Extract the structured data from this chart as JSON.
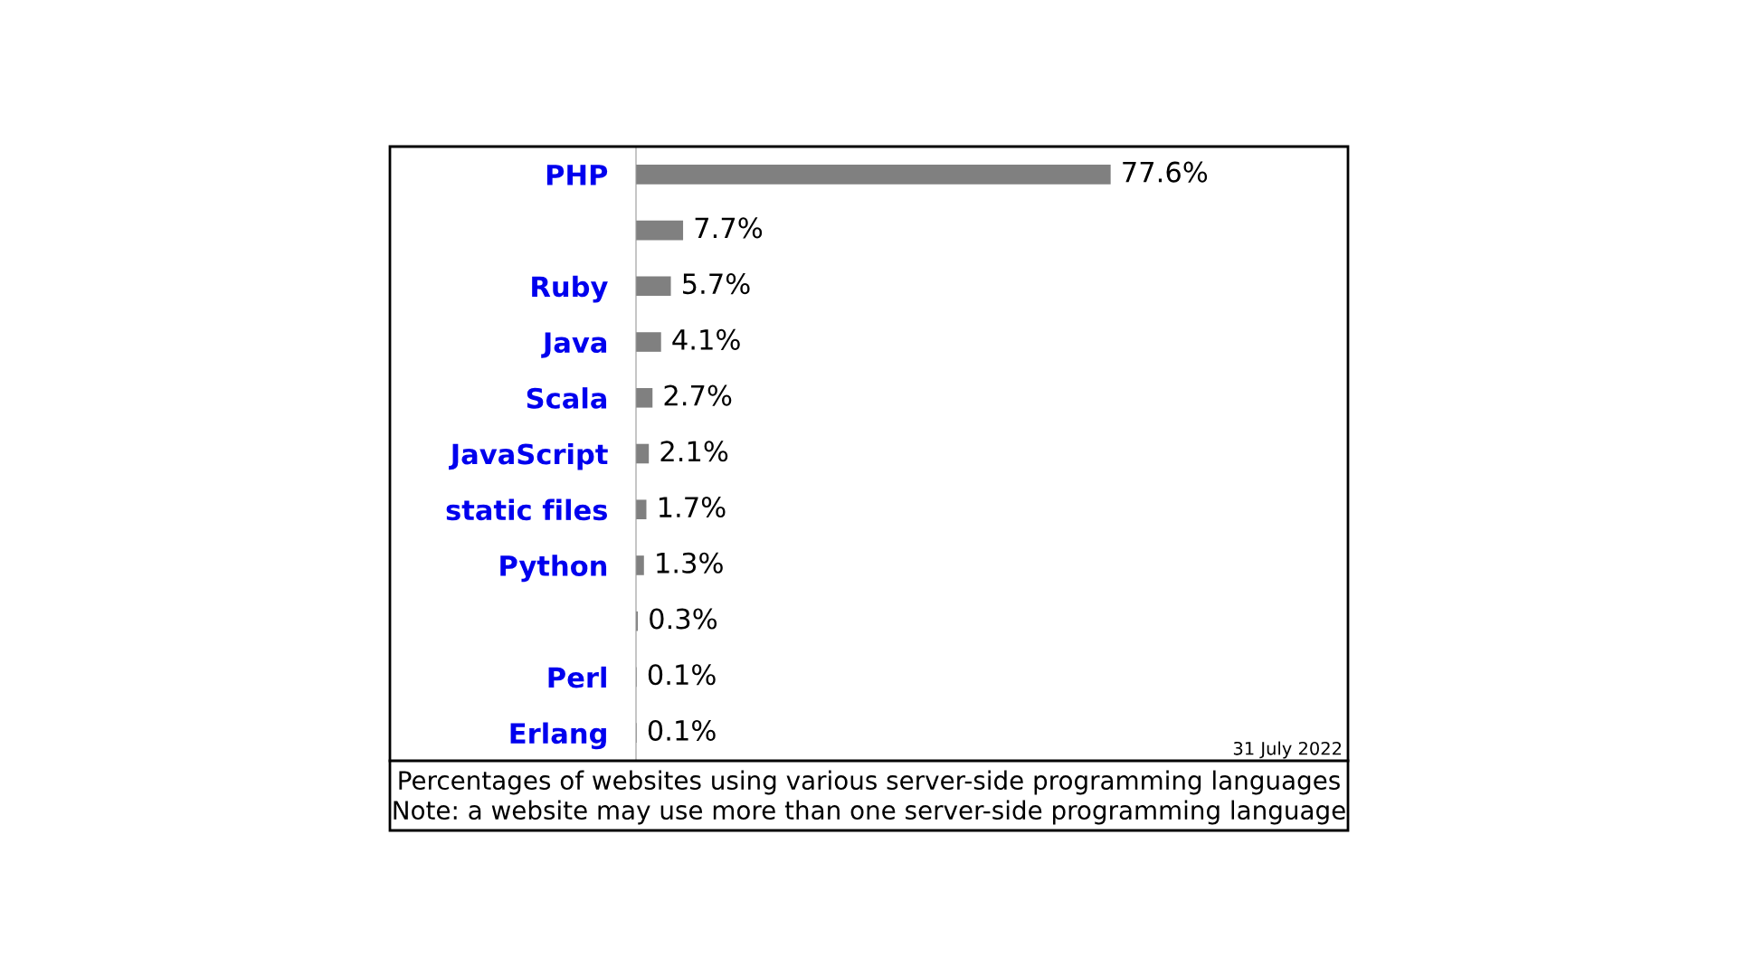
{
  "chart_data": {
    "type": "bar",
    "orientation": "horizontal",
    "categories": [
      "PHP",
      null,
      "Ruby",
      "Java",
      "Scala",
      "JavaScript",
      "static files",
      "Python",
      null,
      "Perl",
      "Erlang"
    ],
    "values": [
      77.6,
      7.7,
      5.7,
      4.1,
      2.7,
      2.1,
      1.7,
      1.3,
      0.3,
      0.1,
      0.1
    ],
    "color": "#808080",
    "value_labels": [
      "77.6%",
      "7.7%",
      "5.7%",
      "4.1%",
      "2.7%",
      "2.1%",
      "1.7%",
      "1.3%",
      "0.3%",
      "0.1%",
      "0.1%"
    ],
    "annotations": [
      "31 July 2022",
      "Percentages of websites using various server-side programming languages",
      "Note: a website may use more than one server-side programming language"
    ],
    "grid": false,
    "legend": false
  }
}
